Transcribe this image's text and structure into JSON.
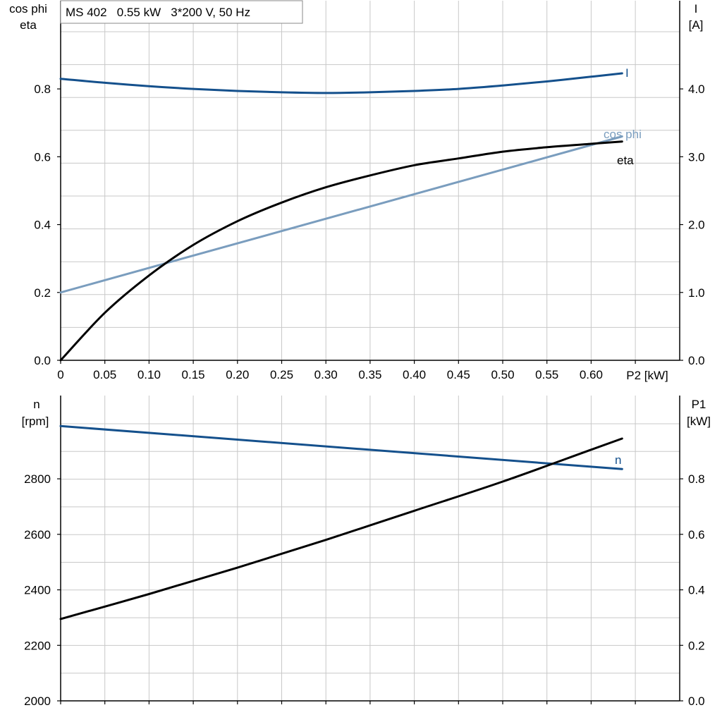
{
  "colors": {
    "grid": "#c8c8c8",
    "axis": "#000000",
    "current": "#14508c",
    "cos_phi": "#7a9dbe",
    "eta": "#000000",
    "speed": "#14508c",
    "p1": "#000000"
  },
  "info_box": {
    "text": "MS 402   0.55 kW   3*200 V, 50 Hz"
  },
  "chart_data": [
    {
      "type": "line",
      "name": "efficiency-chart",
      "x_axis": {
        "label": "P2 [kW]",
        "range": [
          0,
          0.7
        ],
        "tick_labels": [
          "0",
          "0.05",
          "0.10",
          "0.15",
          "0.20",
          "0.25",
          "0.30",
          "0.35",
          "0.40",
          "0.45",
          "0.50",
          "0.55",
          "0.60"
        ],
        "tick_values": [
          0,
          0.05,
          0.1,
          0.15,
          0.2,
          0.25,
          0.3,
          0.35,
          0.4,
          0.45,
          0.5,
          0.55,
          0.6
        ]
      },
      "y_left": {
        "label_line1": "cos phi",
        "label_line2": "eta",
        "range": [
          0,
          1.06
        ],
        "tick_labels": [
          "0.0",
          "0.2",
          "0.4",
          "0.6",
          "0.8"
        ],
        "tick_values": [
          0,
          0.2,
          0.4,
          0.6,
          0.8
        ]
      },
      "y_right": {
        "label_line1": "I",
        "label_line2": "[A]",
        "range": [
          0,
          5.3
        ],
        "tick_labels": [
          "0.0",
          "1.0",
          "2.0",
          "3.0",
          "4.0"
        ],
        "tick_values": [
          0,
          1,
          2,
          3,
          4
        ]
      },
      "grid": true,
      "series": [
        {
          "name": "I",
          "axis": "right",
          "color_key": "current",
          "x": [
            0,
            0.05,
            0.1,
            0.15,
            0.2,
            0.25,
            0.3,
            0.35,
            0.4,
            0.45,
            0.5,
            0.55,
            0.6,
            0.635
          ],
          "y": [
            4.15,
            4.09,
            4.04,
            4.0,
            3.97,
            3.95,
            3.94,
            3.95,
            3.97,
            4.0,
            4.05,
            4.11,
            4.18,
            4.23
          ]
        },
        {
          "name": "cos phi",
          "axis": "left",
          "color_key": "cos_phi",
          "x": [
            0,
            0.635
          ],
          "y": [
            0.2,
            0.66
          ]
        },
        {
          "name": "eta",
          "axis": "left",
          "color_key": "eta",
          "x": [
            0,
            0.05,
            0.1,
            0.15,
            0.2,
            0.25,
            0.3,
            0.35,
            0.4,
            0.45,
            0.5,
            0.55,
            0.6,
            0.635
          ],
          "y": [
            0.0,
            0.14,
            0.25,
            0.34,
            0.41,
            0.465,
            0.51,
            0.545,
            0.575,
            0.595,
            0.615,
            0.628,
            0.638,
            0.645
          ]
        }
      ]
    },
    {
      "type": "line",
      "name": "speed-power-chart",
      "x_axis": {
        "label": "",
        "range": [
          0,
          0.7
        ]
      },
      "y_left": {
        "label_line1": "n",
        "label_line2": "[rpm]",
        "range": [
          2000,
          3100
        ],
        "tick_labels": [
          "2000",
          "2200",
          "2400",
          "2600",
          "2800"
        ],
        "tick_values": [
          2000,
          2200,
          2400,
          2600,
          2800
        ]
      },
      "y_right": {
        "label_line1": "P1",
        "label_line2": "[kW]",
        "range": [
          0,
          1.1
        ],
        "tick_labels": [
          "0.0",
          "0.2",
          "0.4",
          "0.6",
          "0.8"
        ],
        "tick_values": [
          0,
          0.2,
          0.4,
          0.6,
          0.8
        ]
      },
      "grid": true,
      "series": [
        {
          "name": "n",
          "axis": "left",
          "color_key": "speed",
          "x": [
            0,
            0.635
          ],
          "y": [
            2990,
            2835
          ]
        },
        {
          "name": "P1",
          "axis": "right",
          "color_key": "p1",
          "x": [
            0,
            0.1,
            0.2,
            0.3,
            0.4,
            0.5,
            0.6,
            0.635
          ],
          "y": [
            0.295,
            0.385,
            0.48,
            0.58,
            0.685,
            0.79,
            0.905,
            0.945
          ]
        }
      ]
    }
  ]
}
